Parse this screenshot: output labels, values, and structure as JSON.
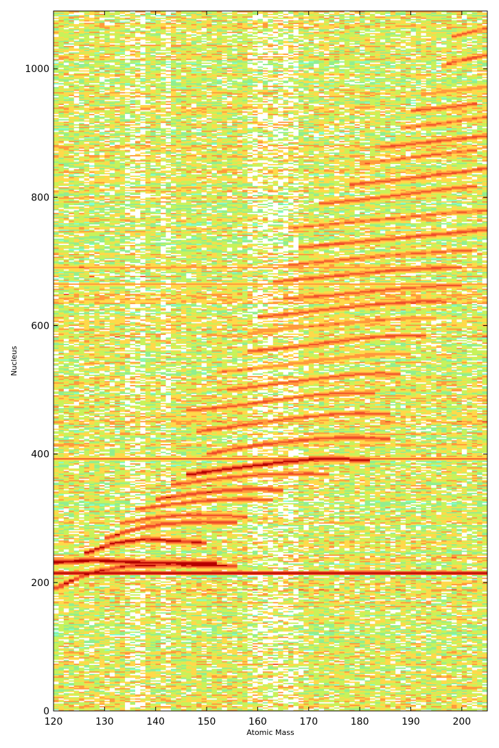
{
  "chart_data": {
    "type": "heatmap",
    "title": "",
    "xlabel": "Atomic Mass",
    "ylabel": "Nucleus",
    "xlim": [
      120,
      205
    ],
    "ylim": [
      0,
      1090
    ],
    "x_ticks": [
      120,
      130,
      140,
      150,
      160,
      170,
      180,
      190,
      200
    ],
    "y_ticks": [
      0,
      200,
      400,
      600,
      800,
      1000
    ],
    "grid": false,
    "legend": "none",
    "colormap": "jet",
    "colormap_colors": [
      "#ffffff",
      "#7fffd4",
      "#90ee90",
      "#c8f25a",
      "#ffd94a",
      "#ff9a3c",
      "#f0502a",
      "#b40000"
    ],
    "ridges": [
      {
        "x": [
          120,
          128,
          136,
          145,
          152
        ],
        "y": [
          232,
          235,
          232,
          230,
          230
        ],
        "level": 0.98
      },
      {
        "x": [
          120,
          127,
          134,
          142,
          150,
          156
        ],
        "y": [
          190,
          215,
          226,
          228,
          227,
          226
        ],
        "level": 0.9
      },
      {
        "x": [
          126,
          132,
          138,
          144,
          150
        ],
        "y": [
          245,
          262,
          268,
          265,
          262
        ],
        "level": 0.92
      },
      {
        "x": [
          130,
          135,
          142,
          150,
          156
        ],
        "y": [
          268,
          282,
          292,
          295,
          294
        ],
        "level": 0.85
      },
      {
        "x": [
          133,
          140,
          147,
          153,
          158
        ],
        "y": [
          292,
          302,
          306,
          305,
          302
        ],
        "level": 0.8
      },
      {
        "x": [
          136,
          143,
          150,
          157,
          163
        ],
        "y": [
          314,
          322,
          328,
          330,
          329
        ],
        "level": 0.8
      },
      {
        "x": [
          140,
          147,
          154,
          160,
          165
        ],
        "y": [
          330,
          338,
          344,
          346,
          344
        ],
        "level": 0.85
      },
      {
        "x": [
          143,
          152,
          160,
          168,
          174
        ],
        "y": [
          352,
          362,
          368,
          370,
          369
        ],
        "level": 0.8
      },
      {
        "x": [
          146,
          155,
          163,
          170,
          176,
          182
        ],
        "y": [
          368,
          378,
          386,
          392,
          393,
          390
        ],
        "level": 0.96
      },
      {
        "x": [
          150,
          158,
          166,
          173,
          180,
          186
        ],
        "y": [
          400,
          412,
          420,
          425,
          426,
          424
        ],
        "level": 0.82
      },
      {
        "x": [
          148,
          157,
          166,
          174,
          180,
          186
        ],
        "y": [
          435,
          445,
          455,
          462,
          464,
          462
        ],
        "level": 0.8
      },
      {
        "x": [
          146,
          152,
          158,
          165,
          172,
          178,
          183
        ],
        "y": [
          468,
          472,
          478,
          486,
          493,
          496,
          494
        ],
        "level": 0.78
      },
      {
        "x": [
          154,
          162,
          170,
          178,
          184,
          188
        ],
        "y": [
          500,
          508,
          516,
          524,
          526,
          525
        ],
        "level": 0.78
      },
      {
        "x": [
          152,
          160,
          168,
          176,
          183,
          190
        ],
        "y": [
          528,
          534,
          542,
          550,
          556,
          556
        ],
        "level": 0.72
      },
      {
        "x": [
          158,
          166,
          174,
          182,
          188,
          193
        ],
        "y": [
          560,
          566,
          574,
          582,
          585,
          584
        ],
        "level": 0.8
      },
      {
        "x": [
          158,
          166,
          174,
          182,
          190,
          195
        ],
        "y": [
          588,
          596,
          602,
          608,
          612,
          612
        ],
        "level": 0.72
      },
      {
        "x": [
          160,
          168,
          176,
          184,
          192,
          197
        ],
        "y": [
          614,
          620,
          628,
          634,
          638,
          638
        ],
        "level": 0.8
      },
      {
        "x": [
          165,
          172,
          180,
          188,
          195,
          200
        ],
        "y": [
          642,
          646,
          652,
          658,
          662,
          663
        ],
        "level": 0.78
      },
      {
        "x": [
          163,
          170,
          178,
          186,
          194,
          200
        ],
        "y": [
          668,
          674,
          680,
          686,
          690,
          691
        ],
        "level": 0.8
      },
      {
        "x": [
          166,
          173,
          181,
          189,
          197,
          203
        ],
        "y": [
          694,
          700,
          706,
          712,
          716,
          718
        ],
        "level": 0.76
      },
      {
        "x": [
          168,
          176,
          184,
          192,
          200,
          205
        ],
        "y": [
          722,
          728,
          734,
          740,
          746,
          750
        ],
        "level": 0.8
      },
      {
        "x": [
          166,
          174,
          182,
          190,
          198,
          205
        ],
        "y": [
          752,
          758,
          764,
          770,
          776,
          780
        ],
        "level": 0.74
      },
      {
        "x": [
          172,
          180,
          188,
          196,
          203
        ],
        "y": [
          790,
          796,
          804,
          812,
          818
        ],
        "level": 0.78
      },
      {
        "x": [
          178,
          186,
          194,
          202,
          205
        ],
        "y": [
          820,
          826,
          834,
          842,
          846
        ],
        "level": 0.8
      },
      {
        "x": [
          180,
          188,
          196,
          203
        ],
        "y": [
          852,
          860,
          868,
          874
        ],
        "level": 0.76
      },
      {
        "x": [
          184,
          191,
          198,
          205
        ],
        "y": [
          878,
          884,
          890,
          896
        ],
        "level": 0.8
      },
      {
        "x": [
          188,
          195,
          202,
          205
        ],
        "y": [
          908,
          914,
          922,
          926
        ],
        "level": 0.76
      },
      {
        "x": [
          190,
          197,
          203
        ],
        "y": [
          935,
          940,
          946
        ],
        "level": 0.8
      },
      {
        "x": [
          192,
          198,
          205
        ],
        "y": [
          960,
          966,
          972
        ],
        "level": 0.72
      },
      {
        "x": [
          196,
          201,
          205
        ],
        "y": [
          1005,
          1015,
          1022
        ],
        "level": 0.78
      },
      {
        "x": [
          198,
          202,
          205
        ],
        "y": [
          1050,
          1058,
          1064
        ],
        "level": 0.72
      }
    ],
    "horizontal_bands": [
      {
        "y": 215,
        "level": 0.88
      },
      {
        "y": 393,
        "level": 0.72
      },
      {
        "y": 608,
        "level": 0.6
      },
      {
        "y": 638,
        "level": 0.62
      },
      {
        "y": 665,
        "level": 0.6
      },
      {
        "y": 691,
        "level": 0.66
      },
      {
        "y": 752,
        "level": 0.6
      },
      {
        "y": 828,
        "level": 0.55
      },
      {
        "y": 1050,
        "level": 0.5
      }
    ]
  }
}
